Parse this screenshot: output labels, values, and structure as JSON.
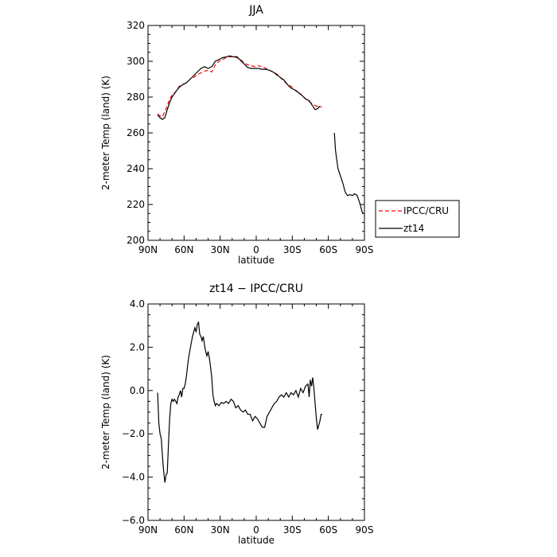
{
  "chart_data": [
    {
      "type": "line",
      "title": "JJA",
      "xlabel": "latitude",
      "ylabel": "2-meter Temp (land) (K)",
      "xlim": [
        90,
        -90
      ],
      "ylim": [
        200,
        320
      ],
      "x_ticks": [
        90,
        60,
        30,
        0,
        -30,
        -60,
        -90
      ],
      "x_tick_labels": [
        "90N",
        "60N",
        "30N",
        "0",
        "30S",
        "60S",
        "90S"
      ],
      "y_ticks": [
        200,
        220,
        240,
        260,
        280,
        300,
        320
      ],
      "y_tick_labels": [
        "200",
        "220",
        "240",
        "260",
        "280",
        "300",
        "320"
      ],
      "legend_position": "right",
      "series": [
        {
          "name": "IPCC/CRU",
          "color": "#ff0000",
          "style": "dashed",
          "points": [
            [
              82,
              270.5
            ],
            [
              80,
              269.5
            ],
            [
              78,
              269
            ],
            [
              76,
              272
            ],
            [
              74,
              275
            ],
            [
              72,
              279
            ],
            [
              70,
              281
            ],
            [
              67,
              283
            ],
            [
              64,
              286
            ],
            [
              61,
              287
            ],
            [
              58,
              288
            ],
            [
              55,
              290
            ],
            [
              52,
              291
            ],
            [
              49,
              292.5
            ],
            [
              46,
              293.5
            ],
            [
              43,
              294.5
            ],
            [
              40,
              295
            ],
            [
              37,
              294
            ],
            [
              34,
              298
            ],
            [
              31,
              300
            ],
            [
              28,
              301
            ],
            [
              25,
              302
            ],
            [
              22,
              302.5
            ],
            [
              19,
              302.5
            ],
            [
              16,
              302
            ],
            [
              13,
              301
            ],
            [
              10,
              299
            ],
            [
              7,
              298
            ],
            [
              4,
              297.5
            ],
            [
              1,
              297
            ],
            [
              -2,
              297.5
            ],
            [
              -5,
              297
            ],
            [
              -8,
              296
            ],
            [
              -11,
              295
            ],
            [
              -14,
              294
            ],
            [
              -17,
              293
            ],
            [
              -20,
              291
            ],
            [
              -23,
              289
            ],
            [
              -26,
              287
            ],
            [
              -29,
              286
            ],
            [
              -32,
              284
            ],
            [
              -35,
              283
            ],
            [
              -38,
              281
            ],
            [
              -41,
              279
            ],
            [
              -44,
              277.5
            ],
            [
              -47,
              276
            ],
            [
              -50,
              275
            ],
            [
              -53,
              274.5
            ],
            [
              -54.5,
              274.5
            ]
          ]
        },
        {
          "name": "zt14",
          "color": "#000000",
          "style": "solid",
          "segments": [
            [
              [
                82,
                270
              ],
              [
                80,
                268.5
              ],
              [
                78,
                267.5
              ],
              [
                76,
                268.5
              ],
              [
                74,
                273
              ],
              [
                72,
                277
              ],
              [
                70,
                280
              ],
              [
                67,
                283
              ],
              [
                64,
                285.5
              ],
              [
                61,
                287
              ],
              [
                58,
                288
              ],
              [
                55,
                290
              ],
              [
                52,
                292
              ],
              [
                49,
                294
              ],
              [
                46,
                296
              ],
              [
                43,
                297
              ],
              [
                40,
                296
              ],
              [
                37,
                297
              ],
              [
                34,
                300
              ],
              [
                31,
                301
              ],
              [
                28,
                302
              ],
              [
                25,
                302.5
              ],
              [
                22,
                303
              ],
              [
                19,
                302.5
              ],
              [
                16,
                302.5
              ],
              [
                13,
                300.5
              ],
              [
                10,
                298.5
              ],
              [
                7,
                296.5
              ],
              [
                4,
                296
              ],
              [
                1,
                296
              ],
              [
                -2,
                296
              ],
              [
                -5,
                295.5
              ],
              [
                -8,
                295.5
              ],
              [
                -11,
                295
              ],
              [
                -14,
                294
              ],
              [
                -17,
                292.5
              ],
              [
                -20,
                291
              ],
              [
                -23,
                289.5
              ],
              [
                -26,
                287
              ],
              [
                -29,
                285
              ],
              [
                -32,
                284
              ],
              [
                -35,
                282.5
              ],
              [
                -38,
                281
              ],
              [
                -41,
                279
              ],
              [
                -44,
                278
              ],
              [
                -47,
                275
              ],
              [
                -49,
                273
              ],
              [
                -51,
                273.5
              ],
              [
                -53,
                275
              ]
            ],
            [
              [
                -65,
                260
              ],
              [
                -66,
                250
              ],
              [
                -67,
                245
              ],
              [
                -68,
                240
              ],
              [
                -70,
                236
              ],
              [
                -72,
                232
              ],
              [
                -74,
                227
              ],
              [
                -76,
                225
              ],
              [
                -78,
                225.5
              ],
              [
                -80,
                225
              ],
              [
                -82,
                226
              ],
              [
                -84,
                225
              ],
              [
                -86,
                221
              ],
              [
                -88,
                216
              ],
              [
                -89,
                215
              ]
            ]
          ]
        }
      ]
    },
    {
      "type": "line",
      "title": "zt14 − IPCC/CRU",
      "xlabel": "latitude",
      "ylabel": "2-meter Temp (land) (K)",
      "xlim": [
        90,
        -90
      ],
      "ylim": [
        -6,
        4
      ],
      "x_ticks": [
        90,
        60,
        30,
        0,
        -30,
        -60,
        -90
      ],
      "x_tick_labels": [
        "90N",
        "60N",
        "30N",
        "0",
        "30S",
        "60S",
        "90S"
      ],
      "y_ticks": [
        -6,
        -4,
        -2,
        0,
        2,
        4
      ],
      "y_tick_labels": [
        "−6.0",
        "−4.0",
        "−2.0",
        "0.0",
        "2.0",
        "4.0"
      ],
      "series": [
        {
          "color": "#000000",
          "style": "solid",
          "points": [
            [
              82,
              -0.1
            ],
            [
              81,
              -1.5
            ],
            [
              80,
              -2
            ],
            [
              79,
              -2.2
            ],
            [
              78,
              -3
            ],
            [
              77,
              -3.7
            ],
            [
              76,
              -4.25
            ],
            [
              75,
              -3.9
            ],
            [
              74,
              -3.8
            ],
            [
              73,
              -2.5
            ],
            [
              72,
              -1.3
            ],
            [
              71,
              -0.6
            ],
            [
              70,
              -0.4
            ],
            [
              69,
              -0.5
            ],
            [
              68,
              -0.4
            ],
            [
              67,
              -0.5
            ],
            [
              66,
              -0.6
            ],
            [
              65,
              -0.3
            ],
            [
              64,
              -0.2
            ],
            [
              63,
              0
            ],
            [
              62,
              -0.3
            ],
            [
              61,
              0.1
            ],
            [
              60,
              0.1
            ],
            [
              59,
              0.3
            ],
            [
              58,
              0.7
            ],
            [
              57,
              1.2
            ],
            [
              56,
              1.6
            ],
            [
              55,
              1.9
            ],
            [
              54,
              2.2
            ],
            [
              53,
              2.5
            ],
            [
              52,
              2.7
            ],
            [
              51,
              2.9
            ],
            [
              50,
              2.7
            ],
            [
              49,
              3.05
            ],
            [
              48,
              3.15
            ],
            [
              47,
              2.6
            ],
            [
              46,
              2.5
            ],
            [
              45,
              2.3
            ],
            [
              44,
              2.5
            ],
            [
              43,
              2.1
            ],
            [
              42,
              1.8
            ],
            [
              41,
              1.6
            ],
            [
              40,
              1.8
            ],
            [
              39,
              1.5
            ],
            [
              38,
              1.1
            ],
            [
              37,
              0.6
            ],
            [
              36,
              -0.2
            ],
            [
              35,
              -0.5
            ],
            [
              34,
              -0.7
            ],
            [
              33,
              -0.6
            ],
            [
              31,
              -0.7
            ],
            [
              29,
              -0.55
            ],
            [
              27,
              -0.6
            ],
            [
              25,
              -0.5
            ],
            [
              23,
              -0.6
            ],
            [
              21,
              -0.4
            ],
            [
              19,
              -0.5
            ],
            [
              17,
              -0.8
            ],
            [
              15,
              -0.7
            ],
            [
              13,
              -0.9
            ],
            [
              11,
              -1
            ],
            [
              9,
              -0.9
            ],
            [
              7,
              -1.1
            ],
            [
              5,
              -1.1
            ],
            [
              3,
              -1.4
            ],
            [
              1,
              -1.2
            ],
            [
              -1,
              -1.3
            ],
            [
              -3,
              -1.5
            ],
            [
              -5,
              -1.7
            ],
            [
              -7,
              -1.7
            ],
            [
              -9,
              -1.2
            ],
            [
              -11,
              -1
            ],
            [
              -13,
              -0.8
            ],
            [
              -15,
              -0.6
            ],
            [
              -17,
              -0.5
            ],
            [
              -19,
              -0.3
            ],
            [
              -21,
              -0.2
            ],
            [
              -23,
              -0.3
            ],
            [
              -25,
              -0.1
            ],
            [
              -27,
              -0.3
            ],
            [
              -29,
              -0.1
            ],
            [
              -31,
              -0.2
            ],
            [
              -33,
              0
            ],
            [
              -35,
              -0.3
            ],
            [
              -37,
              0.1
            ],
            [
              -39,
              -0.1
            ],
            [
              -41,
              0.2
            ],
            [
              -43,
              0.3
            ],
            [
              -44,
              -0.3
            ],
            [
              -45,
              0.5
            ],
            [
              -46,
              0.2
            ],
            [
              -47,
              0.6
            ],
            [
              -48,
              0.1
            ],
            [
              -49,
              -0.6
            ],
            [
              -50,
              -1.3
            ],
            [
              -51,
              -1.8
            ],
            [
              -52,
              -1.6
            ],
            [
              -53,
              -1.4
            ],
            [
              -54,
              -1.1
            ],
            [
              -55,
              -1.1
            ]
          ]
        }
      ]
    }
  ]
}
